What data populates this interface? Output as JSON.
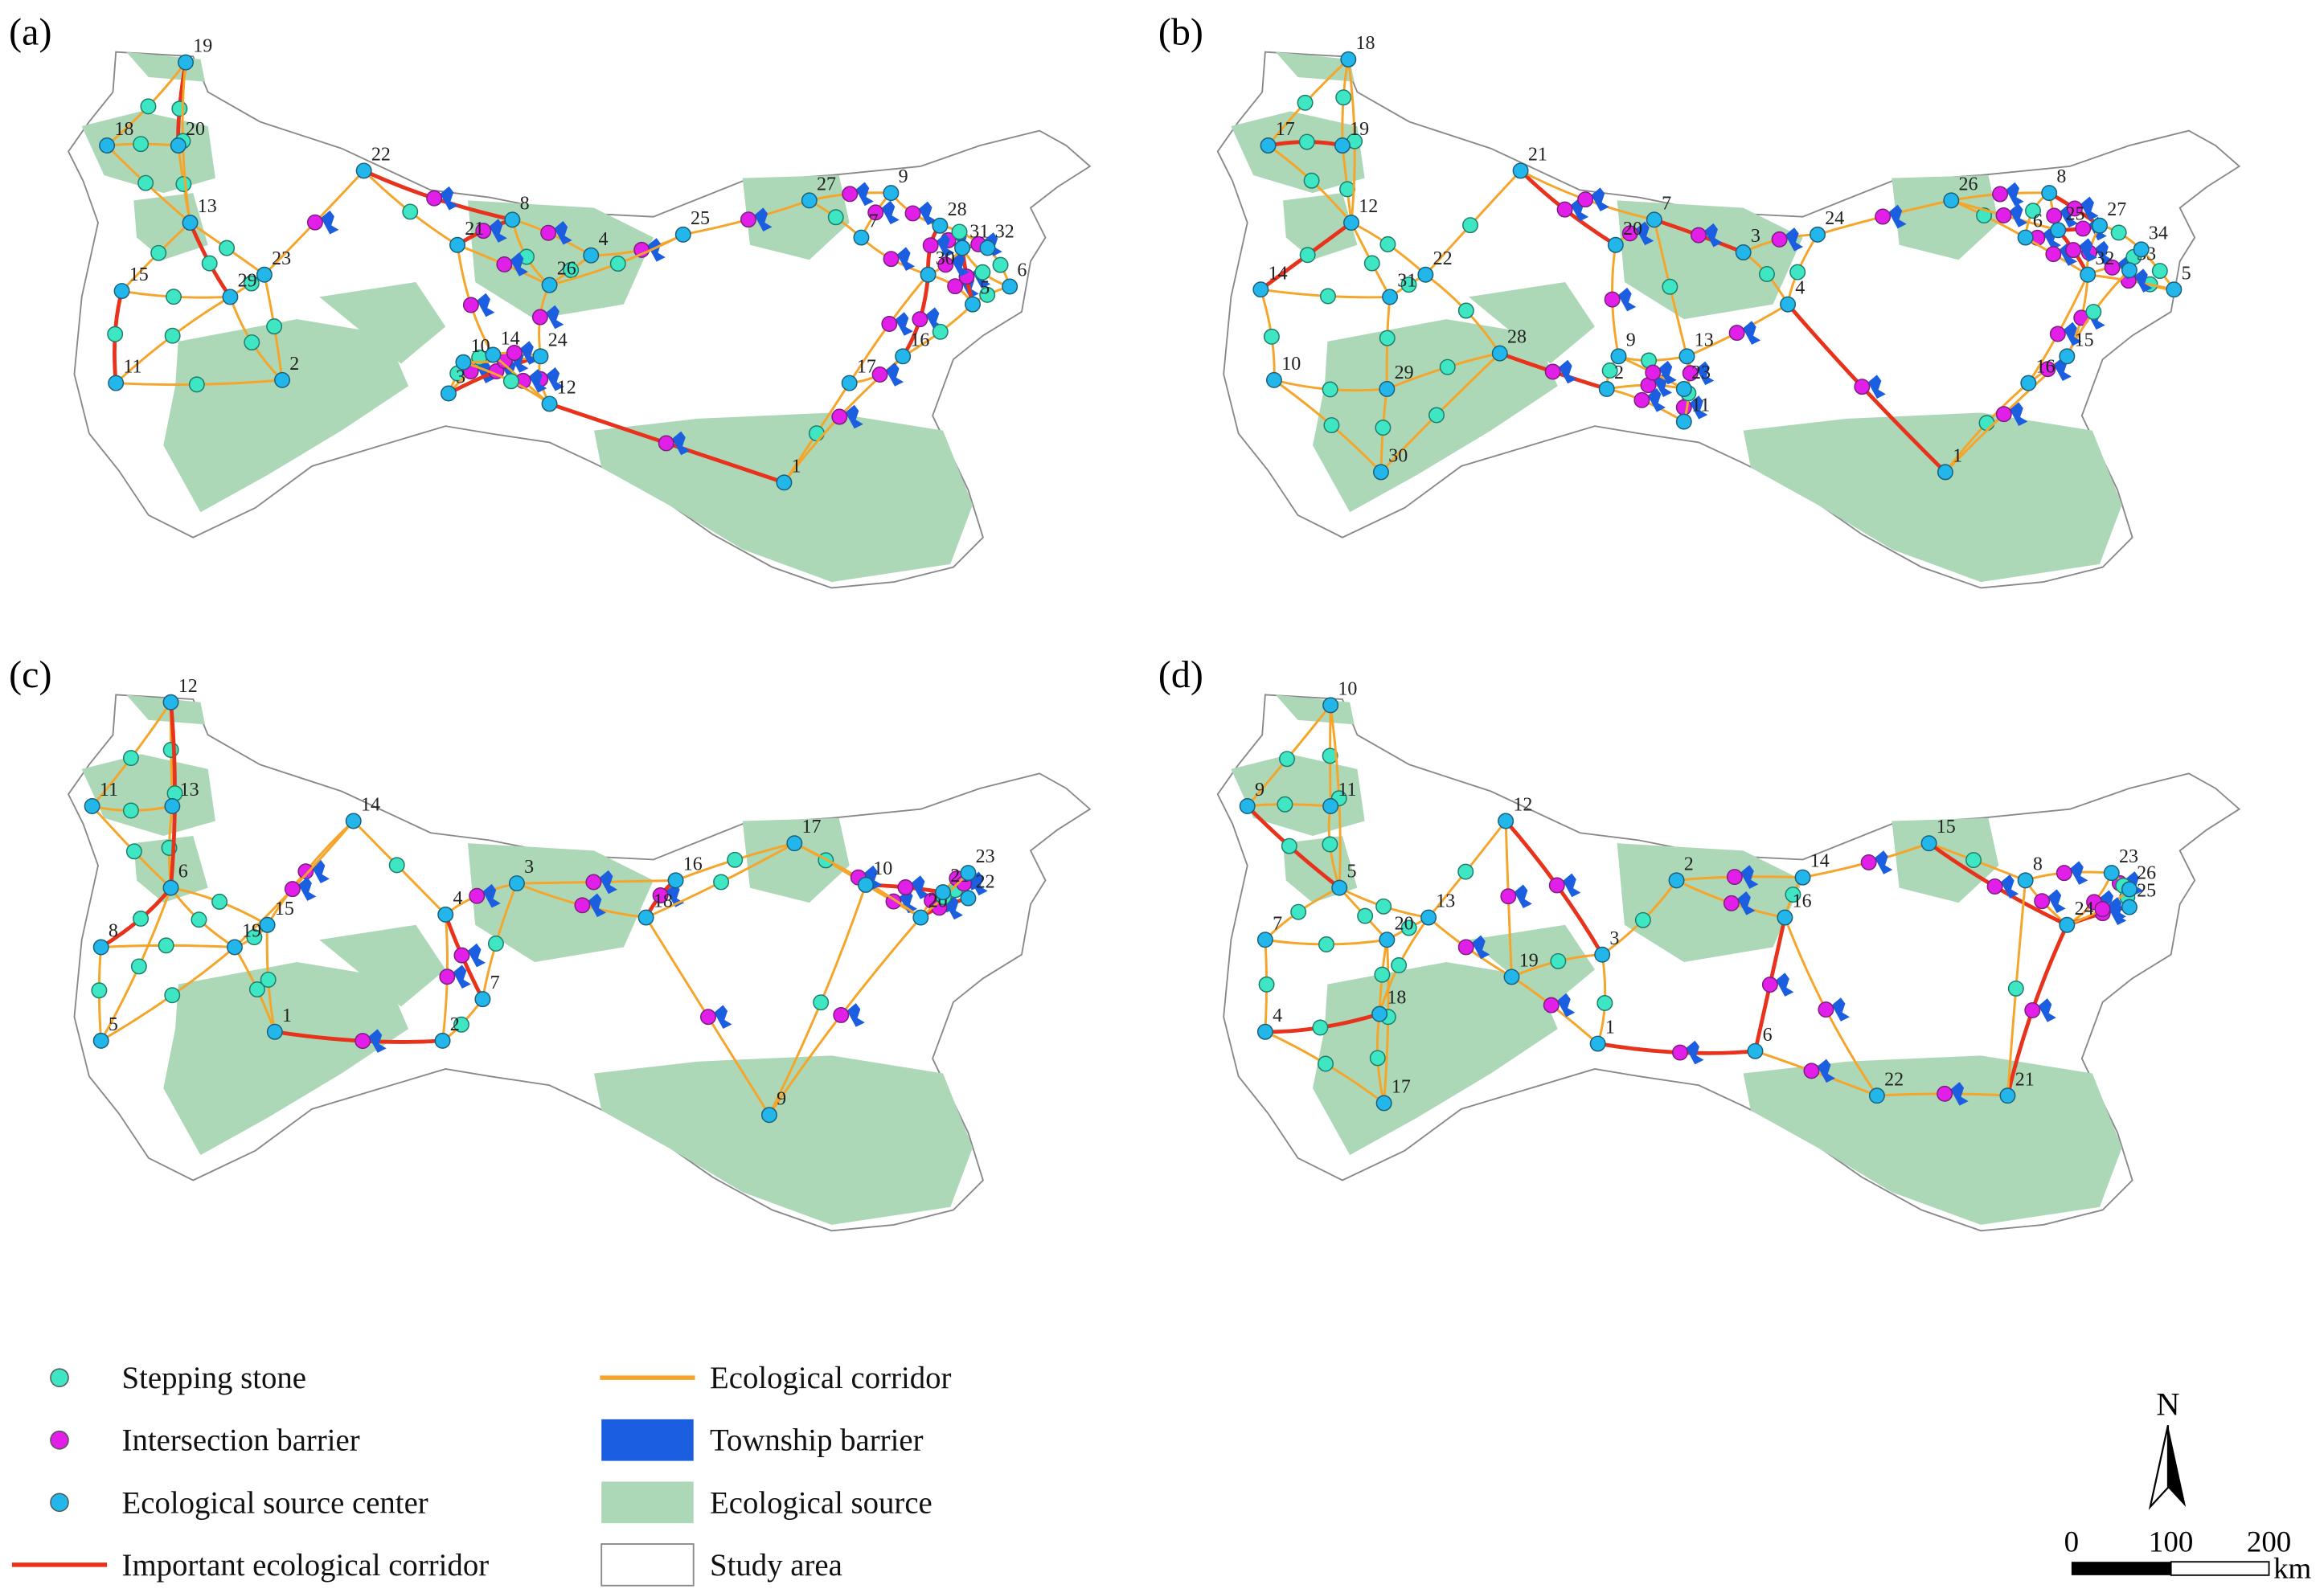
{
  "panels": [
    {
      "label": "(a)",
      "centers": [
        "1",
        "2",
        "3",
        "4",
        "5",
        "6",
        "7",
        "8",
        "9",
        "10",
        "11",
        "12",
        "13",
        "14",
        "15",
        "16",
        "17",
        "18",
        "19",
        "20",
        "21",
        "22",
        "23",
        "24",
        "25",
        "26",
        "27",
        "28",
        "29",
        "30",
        "31",
        "32"
      ]
    },
    {
      "label": "(b)",
      "centers": [
        "1",
        "2",
        "3",
        "4",
        "5",
        "6",
        "7",
        "8",
        "9",
        "10",
        "11",
        "12",
        "13",
        "14",
        "15",
        "16",
        "17",
        "18",
        "19",
        "20",
        "21",
        "22",
        "23",
        "24",
        "25",
        "26",
        "27",
        "28",
        "29",
        "30",
        "31",
        "32",
        "33",
        "34"
      ]
    },
    {
      "label": "(c)",
      "centers": [
        "1",
        "2",
        "3",
        "4",
        "5",
        "6",
        "7",
        "8",
        "9",
        "10",
        "11",
        "12",
        "13",
        "14",
        "15",
        "16",
        "17",
        "18",
        "19",
        "20",
        "21",
        "22",
        "23"
      ]
    },
    {
      "label": "(d)",
      "centers": [
        "1",
        "2",
        "3",
        "4",
        "5",
        "6",
        "7",
        "8",
        "9",
        "10",
        "11",
        "12",
        "13",
        "14",
        "15",
        "16",
        "17",
        "18",
        "19",
        "20",
        "21",
        "22",
        "23",
        "24",
        "25",
        "26"
      ]
    }
  ],
  "legend": {
    "stepping_stone": "Stepping stone",
    "intersection_barrier": "Intersection barrier",
    "source_center": "Ecological source center",
    "important_corridor": "Important ecological corridor",
    "corridor": "Ecological corridor",
    "township_barrier": "Township barrier",
    "source": "Ecological source",
    "study_area": "Study area"
  },
  "north": "N",
  "scale_bar": {
    "ticks": [
      "0",
      "100",
      "200"
    ],
    "unit": "km"
  }
}
